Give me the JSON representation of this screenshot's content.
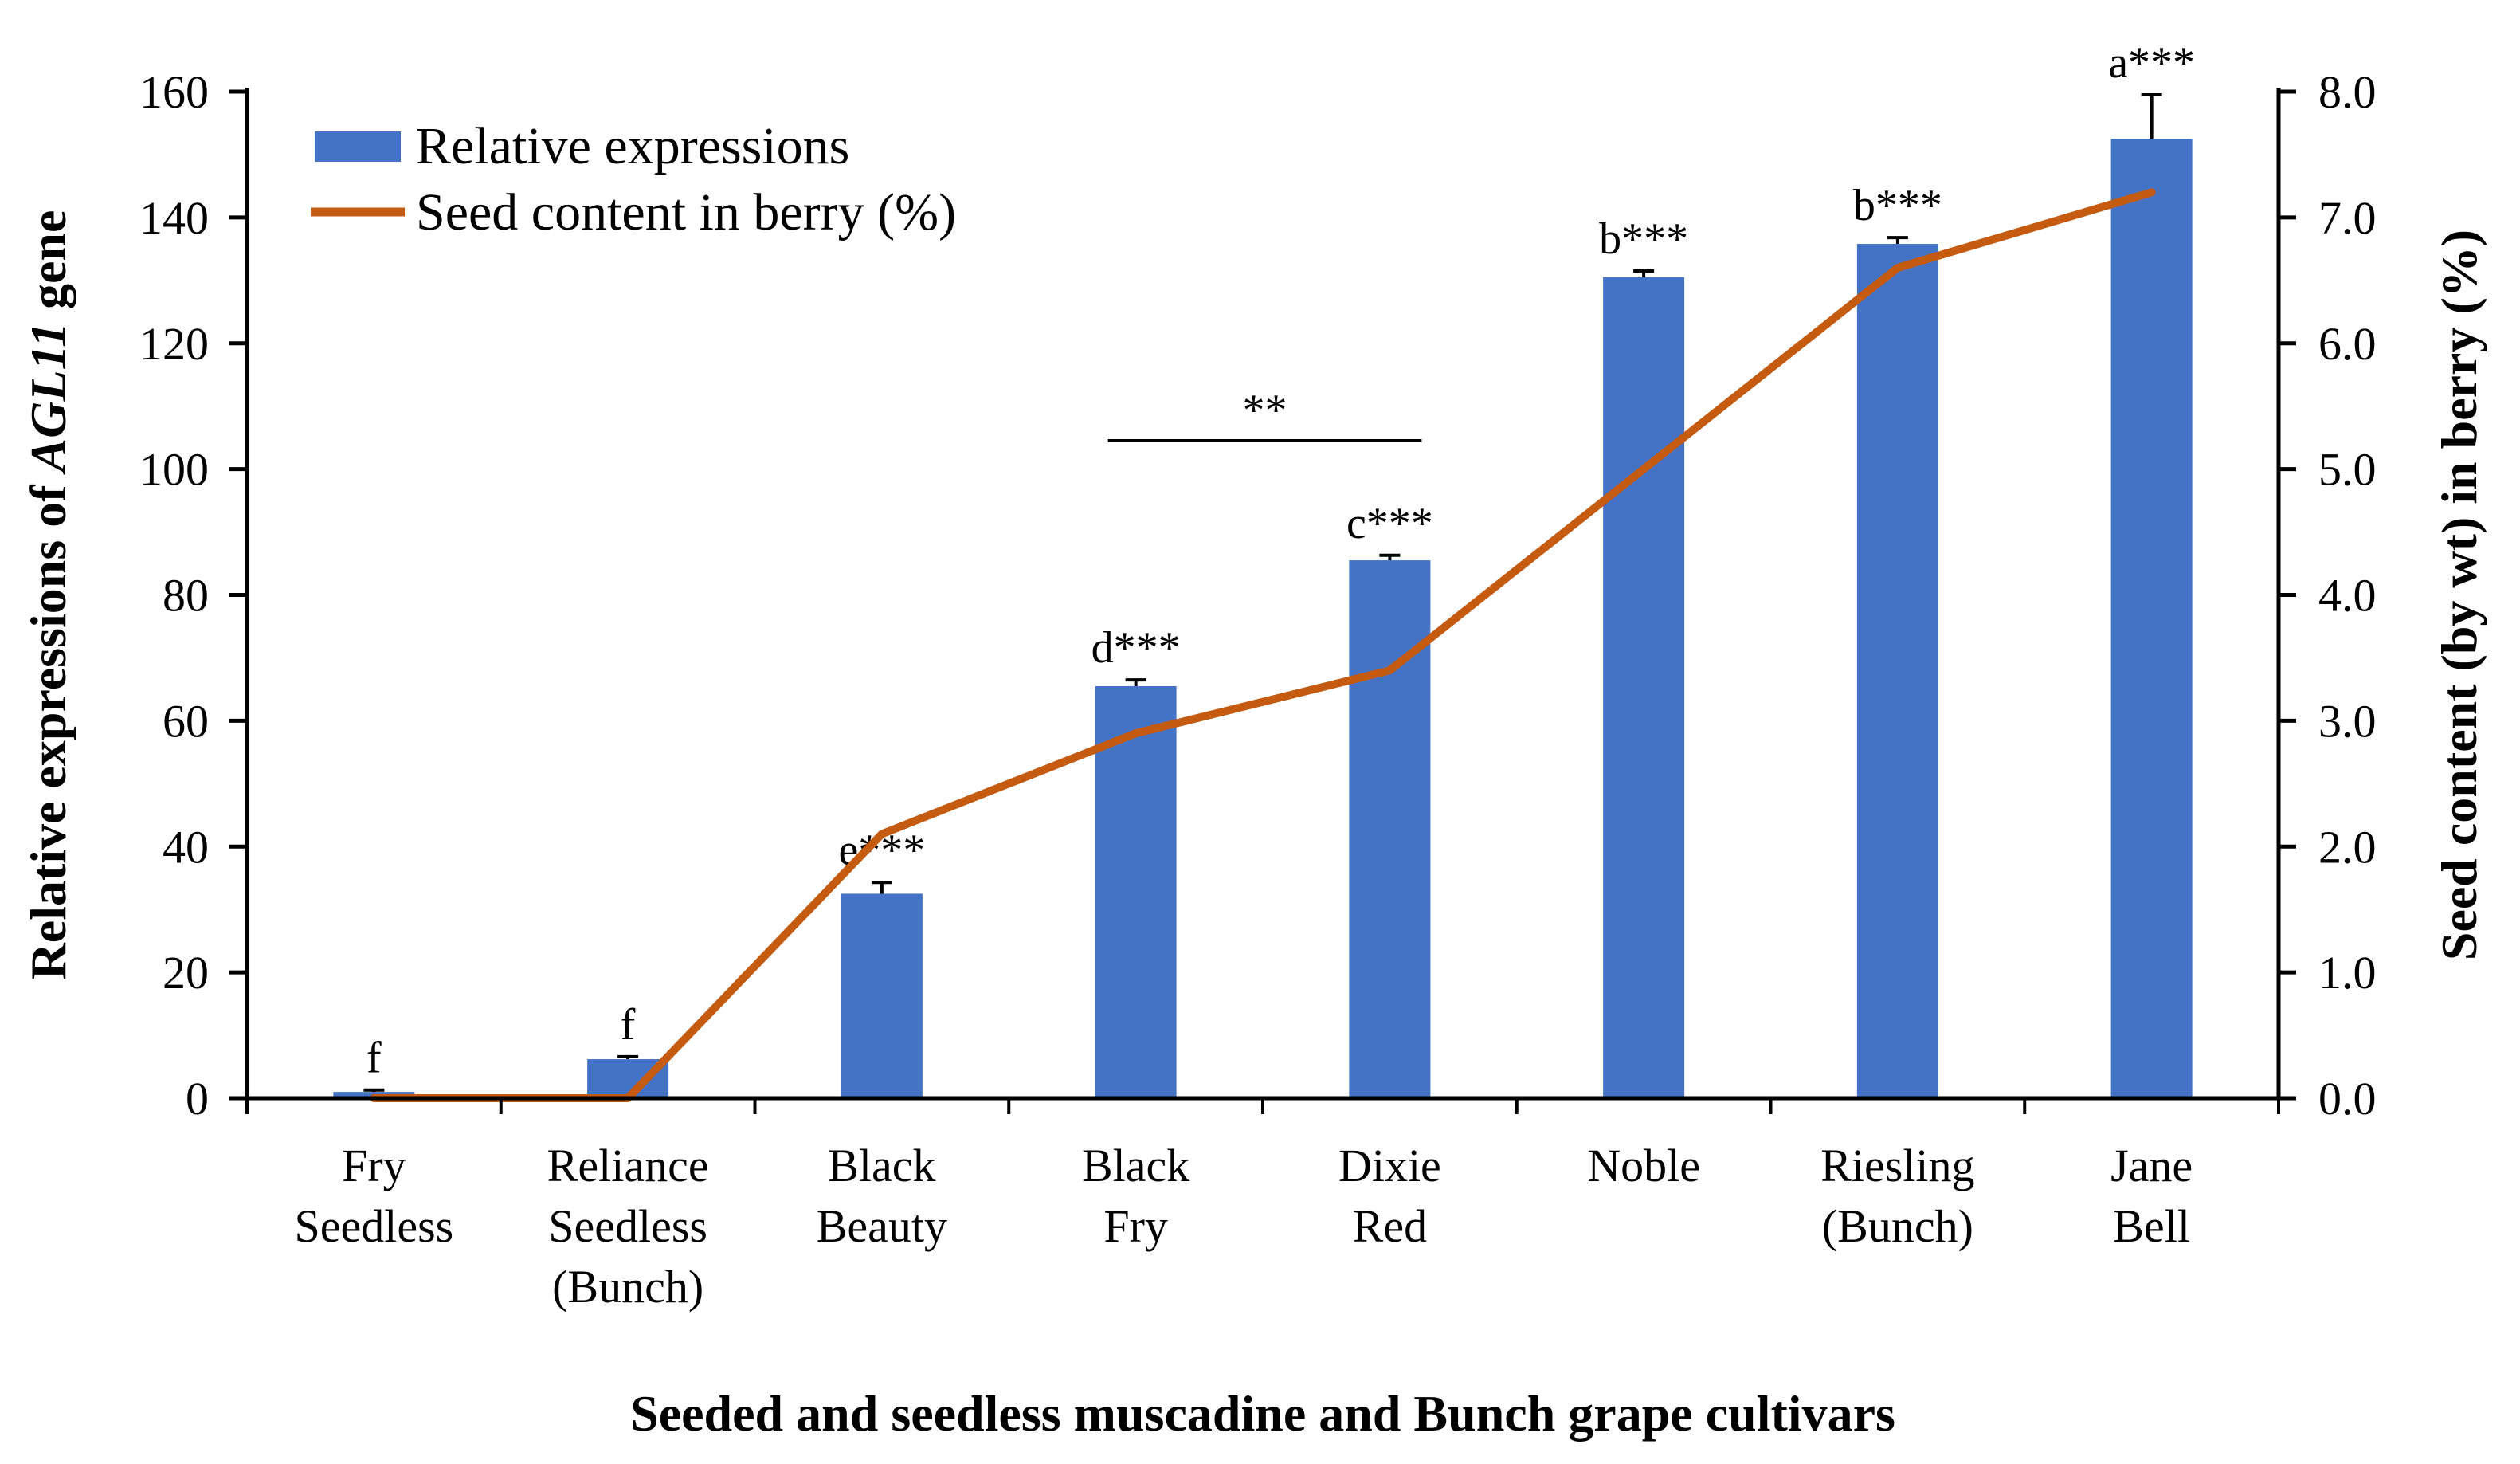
{
  "chart_data": {
    "type": "bar+line",
    "xlabel": "Seeded and seedless muscadine and Bunch grape cultivars",
    "ylabel_parts": [
      "Relative expressions of ",
      "AGL11",
      " gene"
    ],
    "y2label": "Seed content (by wt) in berry (%)",
    "ylim": [
      0,
      160
    ],
    "yticks": [
      "0",
      "20",
      "40",
      "60",
      "80",
      "100",
      "120",
      "140",
      "160"
    ],
    "y2lim": [
      0,
      8
    ],
    "y2ticks": [
      "0.0",
      "1.0",
      "2.0",
      "3.0",
      "4.0",
      "5.0",
      "6.0",
      "7.0",
      "8.0"
    ],
    "categories": [
      [
        "Fry",
        "Seedless"
      ],
      [
        "Reliance",
        "Seedless",
        "(Bunch)"
      ],
      [
        "Black",
        "Beauty"
      ],
      [
        "Black",
        "Fry"
      ],
      [
        "Dixie",
        "Red"
      ],
      [
        "Noble"
      ],
      [
        "Riesling",
        "(Bunch)"
      ],
      [
        "Jane",
        "Bell"
      ]
    ],
    "bar_series": {
      "name": "Relative expressions",
      "color": "#4472C4",
      "values": [
        1.0,
        6.2,
        32.5,
        65.5,
        85.5,
        130.5,
        135.8,
        152.5
      ],
      "errors": [
        0.3,
        0.4,
        1.8,
        1.0,
        0.8,
        1.0,
        1.0,
        7.0
      ],
      "labels": [
        "f",
        "f",
        "e***",
        "d***",
        "c***",
        "b***",
        "b***",
        "a***"
      ]
    },
    "line_series": {
      "name": "Seed content in berry (%)",
      "color": "#C55A11",
      "values": [
        0.0,
        0.0,
        2.1,
        2.9,
        3.4,
        5.0,
        6.6,
        7.2
      ]
    },
    "bracket": {
      "from_category": 3,
      "to_category": 4,
      "label": "**"
    },
    "legend_position": "top-left"
  }
}
